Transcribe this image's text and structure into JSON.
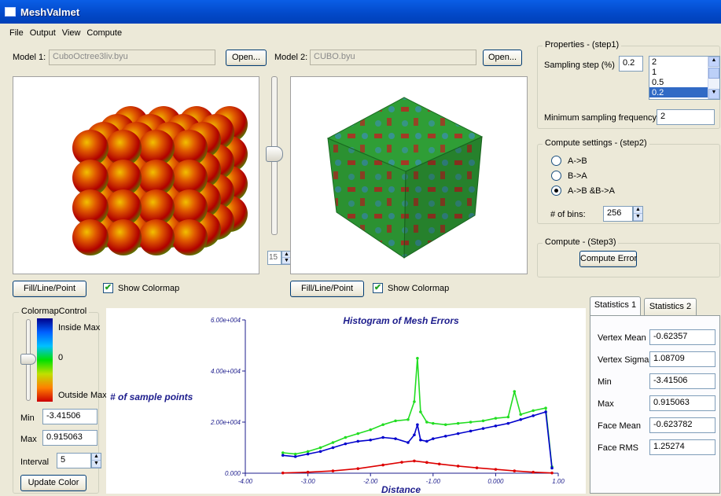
{
  "window": {
    "title": "MeshValmet"
  },
  "menu": [
    "File",
    "Output",
    "View",
    "Compute"
  ],
  "model1": {
    "label": "Model 1:",
    "file": "CuboOctree3liv.byu",
    "open_label": "Open..."
  },
  "model2": {
    "label": "Model 2:",
    "file": "CUBO.byu",
    "open_label": "Open..."
  },
  "viewer": {
    "slider_value": "15",
    "fill_button": "Fill/Line/Point",
    "show_colormap": "Show Colormap",
    "show_colormap_checked": true
  },
  "properties": {
    "title": "Properties - (step1)",
    "sampling_step_label": "Sampling step (%)",
    "sampling_step_value": "0.2",
    "sampling_options": [
      "2",
      "1",
      "0.5",
      "0.2"
    ],
    "sampling_selected": "0.2",
    "min_freq_label": "Minimum sampling frequency",
    "min_freq_value": "2"
  },
  "compute_settings": {
    "title": "Compute settings - (step2)",
    "options": [
      "A->B",
      "B->A",
      "A->B &B->A"
    ],
    "selected": "A->B &B->A",
    "bins_label": "# of bins:",
    "bins_value": "256"
  },
  "compute": {
    "title": "Compute - (Step3)",
    "button": "Compute Error"
  },
  "colormap": {
    "title": "ColormapControl",
    "inside_label": "Inside Max",
    "zero_label": "0",
    "outside_label": "Outside Max",
    "min_label": "Min",
    "min_value": "-3.41506",
    "max_label": "Max",
    "max_value": "0.915063",
    "interval_label": "Interval",
    "interval_value": "5",
    "update_button": "Update Color",
    "colors": [
      "#00008b",
      "#0060ff",
      "#00c0ff",
      "#00e000",
      "#c0e000",
      "#ff8000",
      "#cc0000"
    ]
  },
  "statistics": {
    "tabs": [
      "Statistics 1",
      "Statistics 2"
    ],
    "rows": [
      {
        "label": "Vertex Mean",
        "value": "-0.62357"
      },
      {
        "label": "Vertex Sigma",
        "value": "1.08709"
      },
      {
        "label": "Min",
        "value": "-3.41506"
      },
      {
        "label": "Max",
        "value": "0.915063"
      },
      {
        "label": "Face Mean",
        "value": "-0.623782"
      },
      {
        "label": "Face RMS",
        "value": "1.25274"
      }
    ]
  },
  "chart_data": {
    "type": "line",
    "title": "Histogram of Mesh Errors",
    "xlabel": "Distance",
    "ylabel": "# of sample points",
    "xlim": [
      -4.0,
      1.0
    ],
    "ylim": [
      0,
      60000
    ],
    "xticks": [
      "-4.00",
      "-3.00",
      "-2.00",
      "-1.00",
      "0.000",
      "1.00"
    ],
    "yticks": [
      "0.000",
      "2.00e+004",
      "4.00e+004",
      "6.00e+004"
    ],
    "grid": false,
    "series": [
      {
        "color": "#22dd22",
        "x": [
          -3.4,
          -3.2,
          -3.0,
          -2.8,
          -2.6,
          -2.4,
          -2.2,
          -2.0,
          -1.8,
          -1.6,
          -1.4,
          -1.3,
          -1.25,
          -1.2,
          -1.1,
          -1.0,
          -0.8,
          -0.6,
          -0.4,
          -0.2,
          0.0,
          0.2,
          0.3,
          0.4,
          0.6,
          0.8,
          0.9
        ],
        "y": [
          8000,
          7500,
          8500,
          10000,
          12000,
          14000,
          15500,
          17000,
          19000,
          20500,
          21000,
          28000,
          45000,
          24000,
          20000,
          19500,
          19000,
          19500,
          20000,
          20500,
          21500,
          22000,
          32000,
          23000,
          24500,
          25500,
          2500
        ]
      },
      {
        "color": "#0000cc",
        "x": [
          -3.4,
          -3.2,
          -3.0,
          -2.8,
          -2.6,
          -2.4,
          -2.2,
          -2.0,
          -1.8,
          -1.6,
          -1.4,
          -1.3,
          -1.25,
          -1.2,
          -1.1,
          -1.0,
          -0.8,
          -0.6,
          -0.4,
          -0.2,
          0.0,
          0.2,
          0.4,
          0.6,
          0.8,
          0.9
        ],
        "y": [
          7000,
          6500,
          7500,
          8500,
          10000,
          11500,
          12500,
          13000,
          14000,
          13500,
          12000,
          15000,
          19000,
          13000,
          12500,
          13500,
          14500,
          15500,
          16500,
          17500,
          18500,
          19500,
          21000,
          22500,
          24000,
          2000
        ]
      },
      {
        "color": "#dd0000",
        "x": [
          -3.4,
          -3.0,
          -2.6,
          -2.2,
          -1.8,
          -1.5,
          -1.3,
          -1.1,
          -0.9,
          -0.6,
          -0.3,
          0.0,
          0.3,
          0.6,
          0.9
        ],
        "y": [
          100,
          400,
          900,
          1800,
          3200,
          4300,
          4800,
          4200,
          3600,
          2800,
          2100,
          1500,
          900,
          400,
          100
        ]
      }
    ]
  }
}
